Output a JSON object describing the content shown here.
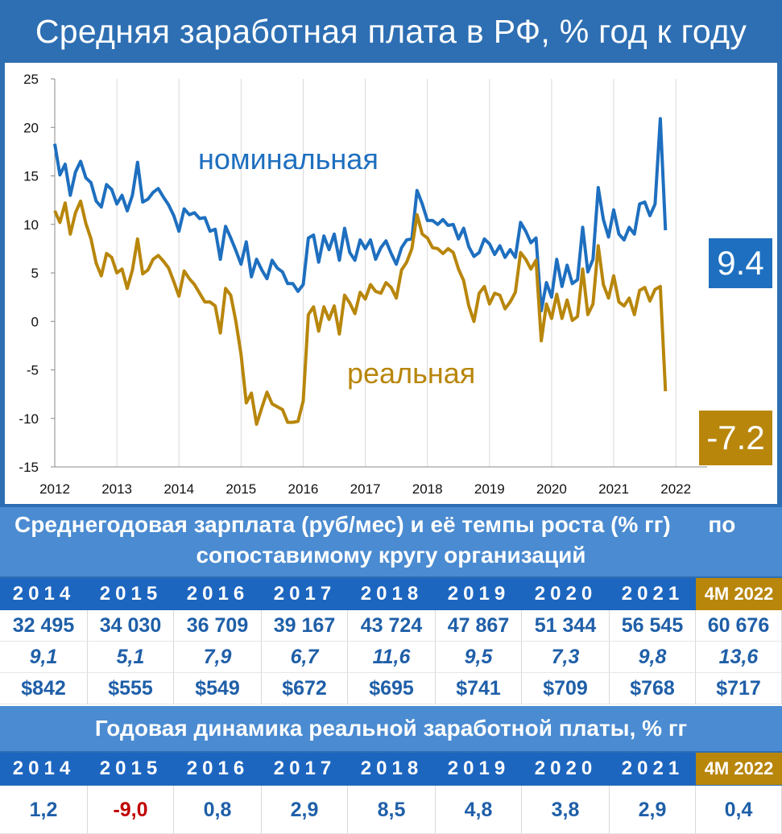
{
  "title": "Средняя заработная плата в РФ, % год к году",
  "colors": {
    "nominal": "#1e6fbf",
    "real": "#b8860b",
    "header_bg": "#2e6fb3",
    "year_bg": "#1d66c0",
    "highlight_bg": "#b8860b",
    "negative": "#c00000"
  },
  "chart_data": {
    "type": "line",
    "x_tick_labels": [
      "2012",
      "2013",
      "2014",
      "2015",
      "2016",
      "2017",
      "2018",
      "2019",
      "2020",
      "2021",
      "2022"
    ],
    "y_tick_labels": [
      "25",
      "20",
      "15",
      "10",
      "5",
      "0",
      "-5",
      "-10",
      "-15"
    ],
    "ylim": [
      -15,
      25
    ],
    "x_start": 2012.0,
    "x_end": 2022.4,
    "months_per_point": 1,
    "series": [
      {
        "name": "номинальная",
        "end_value_label": "9.4",
        "values": [
          18.3,
          15.1,
          16.2,
          13.0,
          15.4,
          16.5,
          14.8,
          14.3,
          12.4,
          11.8,
          14.1,
          13.6,
          12.1,
          13.0,
          11.4,
          13.0,
          16.4,
          12.3,
          12.6,
          13.3,
          13.7,
          12.8,
          12.0,
          10.9,
          9.3,
          11.6,
          11.0,
          11.2,
          10.6,
          10.7,
          9.3,
          9.5,
          6.4,
          9.8,
          8.6,
          7.3,
          5.9,
          8.2,
          4.6,
          6.4,
          5.3,
          4.4,
          6.3,
          5.5,
          5.1,
          3.9,
          3.9,
          3.1,
          3.8,
          8.6,
          8.9,
          6.1,
          8.8,
          7.4,
          9.0,
          6.3,
          9.6,
          7.1,
          6.3,
          8.4,
          7.5,
          8.4,
          6.4,
          7.6,
          8.3,
          7.0,
          5.9,
          7.6,
          8.4,
          8.5,
          13.5,
          12.1,
          10.4,
          10.4,
          10.0,
          10.5,
          9.9,
          10.0,
          8.5,
          9.6,
          7.7,
          6.7,
          7.1,
          8.5,
          8.0,
          6.9,
          7.8,
          6.6,
          7.4,
          6.6,
          10.2,
          9.3,
          8.1,
          8.6,
          1.1,
          4.0,
          2.5,
          6.4,
          3.6,
          5.8,
          3.9,
          4.3,
          9.7,
          5.1,
          6.4,
          13.8,
          10.5,
          8.7,
          11.5,
          9.0,
          8.4,
          9.7,
          9.0,
          12.1,
          12.3,
          10.9,
          12.1,
          20.9,
          9.4
        ]
      },
      {
        "name": "реальная",
        "end_value_label": "-7.2",
        "values": [
          11.4,
          10.2,
          12.2,
          9.0,
          11.2,
          12.4,
          10.1,
          8.5,
          6.0,
          4.7,
          7.0,
          6.6,
          5.0,
          5.4,
          3.4,
          5.3,
          8.5,
          4.9,
          5.3,
          6.4,
          6.8,
          6.2,
          5.5,
          4.1,
          2.6,
          5.2,
          4.4,
          3.8,
          2.9,
          2.0,
          2.0,
          1.6,
          -1.2,
          3.4,
          2.7,
          0.0,
          -3.4,
          -8.4,
          -7.4,
          -10.6,
          -8.9,
          -7.3,
          -8.5,
          -8.8,
          -9.1,
          -10.4,
          -10.4,
          -10.3,
          -8.2,
          0.7,
          1.5,
          -1.0,
          1.5,
          0.2,
          1.6,
          -1.3,
          2.7,
          1.9,
          0.8,
          3.0,
          2.3,
          3.8,
          3.1,
          2.9,
          4.0,
          3.5,
          2.4,
          5.3,
          6.1,
          7.5,
          11.0,
          9.0,
          8.6,
          7.6,
          7.5,
          7.0,
          7.5,
          7.1,
          5.4,
          4.2,
          1.6,
          0.0,
          2.9,
          3.6,
          1.8,
          2.9,
          2.7,
          1.3,
          2.0,
          3.0,
          7.1,
          6.4,
          5.4,
          6.3,
          -2.0,
          1.8,
          0.3,
          2.8,
          0.3,
          2.2,
          0.1,
          0.5,
          5.4,
          0.7,
          1.8,
          7.8,
          3.8,
          2.4,
          4.7,
          2.0,
          1.6,
          2.4,
          0.7,
          3.2,
          3.5,
          2.1,
          3.3,
          3.6,
          -7.2
        ]
      }
    ]
  },
  "avg_table": {
    "header_line1": "Среднегодовая зарплата (руб/мес) и её темпы роста (% гг)      по",
    "header_line2": "сопоставимому кругу организаций",
    "years": [
      "2014",
      "2015",
      "2016",
      "2017",
      "2018",
      "2019",
      "2020",
      "2021",
      "4M 2022"
    ],
    "salary": [
      "32 495",
      "34 030",
      "36 709",
      "39 167",
      "43 724",
      "47 867",
      "51 344",
      "56 545",
      "60 676"
    ],
    "growth": [
      "9,1",
      "5,1",
      "7,9",
      "6,7",
      "11,6",
      "9,5",
      "7,3",
      "9,8",
      "13,6"
    ],
    "usd": [
      "$842",
      "$555",
      "$549",
      "$672",
      "$695",
      "$741",
      "$709",
      "$768",
      "$717"
    ]
  },
  "real_table": {
    "header": "Годовая динамика реальной заработной платы, % гг",
    "years": [
      "2014",
      "2015",
      "2016",
      "2017",
      "2018",
      "2019",
      "2020",
      "2021",
      "4M 2022"
    ],
    "values": [
      "1,2",
      "-9,0",
      "0,8",
      "2,9",
      "8,5",
      "4,8",
      "3,8",
      "2,9",
      "0,4"
    ]
  }
}
